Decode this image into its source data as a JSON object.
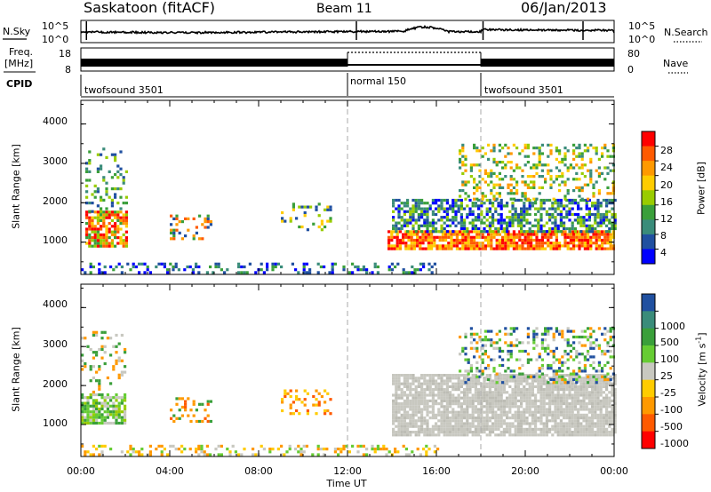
{
  "header": {
    "station": "Saskatoon (fitACF)",
    "beam": "Beam 11",
    "date": "06/Jan/2013"
  },
  "noise_panel": {
    "left_label": "N.Sky",
    "left_ticks": [
      "10^5",
      "10^0"
    ],
    "right_ticks": [
      "10^5",
      "10^0"
    ],
    "right_label": "N.Search"
  },
  "freq_panel": {
    "left_label_top": "Freq.",
    "left_label_unit": "[MHz]",
    "left_ticks": [
      "18",
      "8"
    ],
    "right_ticks": [
      "80",
      "0"
    ],
    "right_label": "Nave",
    "cpid_label": "CPID"
  },
  "cpid_segments": [
    {
      "label": "twofsound 3501",
      "start_hr": 0
    },
    {
      "label": "normal 150",
      "start_hr": 12
    },
    {
      "label": "twofsound 3501",
      "start_hr": 18
    }
  ],
  "chart_data": [
    {
      "type": "heatmap",
      "name": "power",
      "ylabel": "Slant Range [km]",
      "yticks": [
        1000,
        2000,
        3000,
        4000
      ],
      "ylim": [
        180,
        4600
      ],
      "xlim_hr": [
        0,
        24
      ],
      "colorbar": {
        "label": "Power [dB]",
        "ticks": [
          "28",
          "24",
          "20",
          "16",
          "12",
          "8",
          "4"
        ],
        "colors": [
          "#ff0000",
          "#ff5a00",
          "#ff9900",
          "#ffcc00",
          "#99cc00",
          "#3a9f3a",
          "#3a8c7a",
          "#2050a0",
          "#0000ff"
        ]
      },
      "scatter_regions": [
        {
          "t": [
            0.2,
            2.0
          ],
          "r": [
            900,
            1800
          ],
          "density": 0.75,
          "colors": [
            "#ffcc00",
            "#ff9900",
            "#99cc00",
            "#ff5a00",
            "#3a9f3a",
            "#ff0000"
          ]
        },
        {
          "t": [
            0.2,
            2.0
          ],
          "r": [
            1800,
            3400
          ],
          "density": 0.22,
          "colors": [
            "#3a8c7a",
            "#2050a0",
            "#3a9f3a",
            "#99cc00"
          ]
        },
        {
          "t": [
            0.0,
            16.0
          ],
          "r": [
            200,
            480
          ],
          "density": 0.28,
          "colors": [
            "#2050a0",
            "#3a8c7a",
            "#0000ff",
            "#3a9f3a"
          ]
        },
        {
          "t": [
            4.0,
            5.8
          ],
          "r": [
            1100,
            1700
          ],
          "density": 0.3,
          "colors": [
            "#ff5a00",
            "#ff9900",
            "#3a9f3a",
            "#2050a0"
          ]
        },
        {
          "t": [
            9.0,
            11.3
          ],
          "r": [
            1300,
            2000
          ],
          "density": 0.25,
          "colors": [
            "#3a9f3a",
            "#2050a0",
            "#99cc00",
            "#ffcc00"
          ]
        },
        {
          "t": [
            13.8,
            24.0
          ],
          "r": [
            800,
            1300
          ],
          "density": 0.8,
          "colors": [
            "#ff0000",
            "#ff5a00",
            "#ff9900",
            "#ffcc00"
          ]
        },
        {
          "t": [
            14.0,
            24.0
          ],
          "r": [
            1300,
            2100
          ],
          "density": 0.6,
          "colors": [
            "#3a9f3a",
            "#2050a0",
            "#3a8c7a",
            "#0000ff",
            "#99cc00"
          ]
        },
        {
          "t": [
            17.0,
            24.0
          ],
          "r": [
            2100,
            3500
          ],
          "density": 0.3,
          "colors": [
            "#99cc00",
            "#3a9f3a",
            "#ffcc00",
            "#ff9900",
            "#3a8c7a"
          ]
        }
      ]
    },
    {
      "type": "heatmap",
      "name": "velocity",
      "ylabel": "Slant Range [km]",
      "yticks": [
        1000,
        2000,
        3000,
        4000
      ],
      "ylim": [
        180,
        4600
      ],
      "xlim_hr": [
        0,
        24
      ],
      "xticks": [
        "00:00",
        "04:00",
        "08:00",
        "12:00",
        "16:00",
        "20:00",
        "00:00"
      ],
      "xlabel": "Time UT",
      "colorbar": {
        "label": "Velocity [m s",
        "label_sup": "-1",
        "label_close": "]",
        "ticks": [
          "1000",
          "500",
          "100",
          "25",
          "-25",
          "-100",
          "-500",
          "-1000"
        ],
        "colors": [
          "#2050a0",
          "#3a8c7a",
          "#3a9f3a",
          "#66cc33",
          "#c8c8c0",
          "#ffcc00",
          "#ff9900",
          "#ff5a00",
          "#ff0000"
        ]
      },
      "scatter_regions": [
        {
          "t": [
            0.0,
            2.0
          ],
          "r": [
            1000,
            1800
          ],
          "density": 0.75,
          "colors": [
            "#66cc33",
            "#3a9f3a",
            "#c8c8c0",
            "#99cc00"
          ]
        },
        {
          "t": [
            0.0,
            2.0
          ],
          "r": [
            1800,
            3400
          ],
          "density": 0.2,
          "colors": [
            "#c8c8c0",
            "#3a9f3a",
            "#ff9900"
          ]
        },
        {
          "t": [
            0.0,
            16.0
          ],
          "r": [
            200,
            480
          ],
          "density": 0.28,
          "colors": [
            "#ffcc00",
            "#ff9900",
            "#66cc33",
            "#c8c8c0"
          ]
        },
        {
          "t": [
            4.0,
            5.8
          ],
          "r": [
            1100,
            1700
          ],
          "density": 0.3,
          "colors": [
            "#ff9900",
            "#ff5a00",
            "#3a9f3a"
          ]
        },
        {
          "t": [
            9.0,
            11.3
          ],
          "r": [
            1300,
            1900
          ],
          "density": 0.25,
          "colors": [
            "#ff9900",
            "#ff5a00",
            "#ffcc00"
          ]
        },
        {
          "t": [
            14.0,
            24.0
          ],
          "r": [
            700,
            2300
          ],
          "density": 0.85,
          "colors": [
            "#c8c8c0",
            "#c8c8c0",
            "#c8c8c0",
            "#bdbdb5"
          ]
        },
        {
          "t": [
            17.0,
            24.0
          ],
          "r": [
            2100,
            3500
          ],
          "density": 0.3,
          "colors": [
            "#3a9f3a",
            "#66cc33",
            "#2050a0",
            "#ff9900",
            "#c8c8c0"
          ]
        }
      ]
    }
  ]
}
